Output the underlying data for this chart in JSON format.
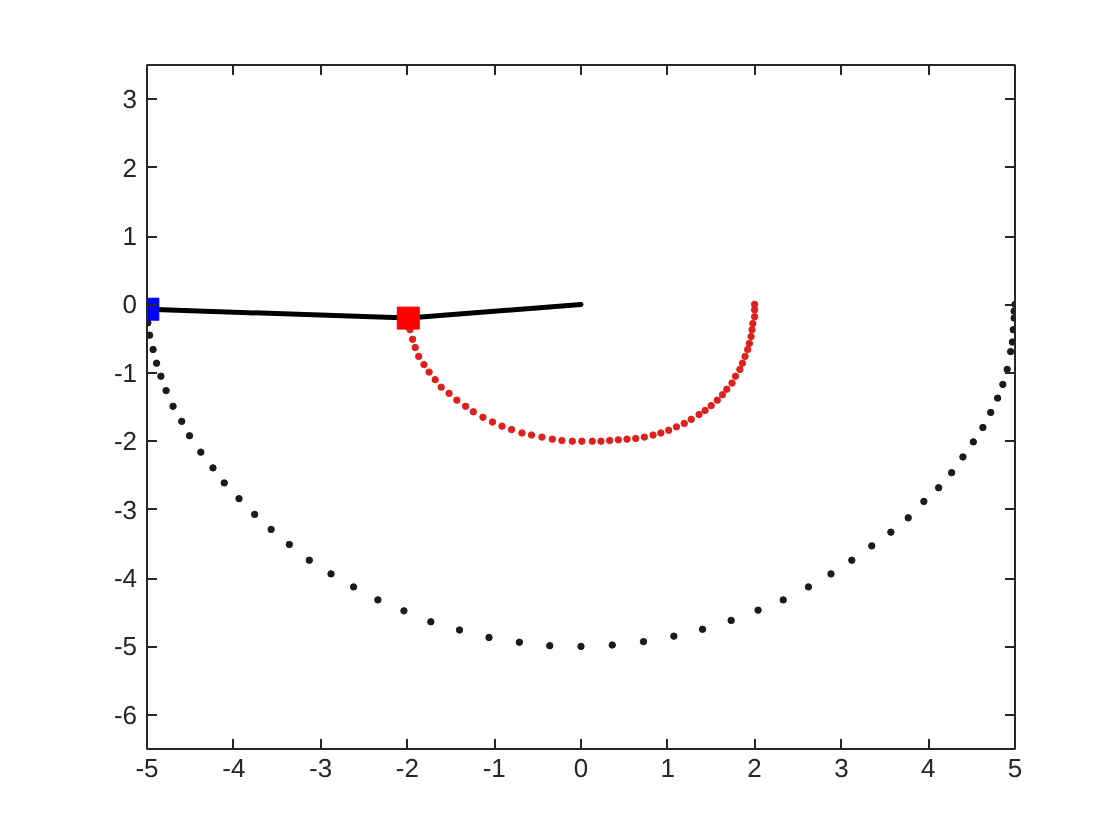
{
  "chart_data": {
    "type": "scatter",
    "xlim": [
      -5,
      5
    ],
    "ylim": [
      -6.5,
      3.5
    ],
    "xticks": [
      -5,
      -4,
      -3,
      -2,
      -1,
      0,
      1,
      2,
      3,
      4,
      5
    ],
    "yticks": [
      -6,
      -5,
      -4,
      -3,
      -2,
      -1,
      0,
      1,
      2,
      3
    ],
    "grid": false,
    "series": [
      {
        "marker": "circle",
        "color": "#1a1a1a",
        "x": [
          5.0,
          4.99,
          4.99,
          4.98,
          4.97,
          4.95,
          4.91,
          4.86,
          4.8,
          4.72,
          4.63,
          4.52,
          4.4,
          4.27,
          4.12,
          3.95,
          3.77,
          3.57,
          3.35,
          3.12,
          2.88,
          2.62,
          2.33,
          2.04,
          1.73,
          1.4,
          1.07,
          0.72,
          0.36,
          0.0,
          -0.36,
          -0.71,
          -1.06,
          -1.4,
          -1.73,
          -2.04,
          -2.34,
          -2.62,
          -2.88,
          -3.13,
          -3.36,
          -3.57,
          -3.76,
          -3.94,
          -4.11,
          -4.24,
          -4.38,
          -4.51,
          -4.6,
          -4.7,
          -4.78,
          -4.84,
          -4.89,
          -4.93,
          -4.97,
          -4.99
        ],
        "values": [
          0.0,
          -0.1,
          -0.2,
          -0.37,
          -0.55,
          -0.69,
          -0.95,
          -1.17,
          -1.37,
          -1.58,
          -1.8,
          -2.01,
          -2.23,
          -2.46,
          -2.68,
          -2.88,
          -3.12,
          -3.33,
          -3.53,
          -3.74,
          -3.94,
          -4.13,
          -4.32,
          -4.47,
          -4.62,
          -4.75,
          -4.85,
          -4.93,
          -4.98,
          -5.0,
          -4.99,
          -4.94,
          -4.87,
          -4.76,
          -4.64,
          -4.48,
          -4.32,
          -4.13,
          -3.94,
          -3.74,
          -3.51,
          -3.29,
          -3.07,
          -2.84,
          -2.61,
          -2.39,
          -2.16,
          -1.92,
          -1.71,
          -1.49,
          -1.26,
          -1.05,
          -0.86,
          -0.66,
          -0.45,
          -0.27
        ]
      },
      {
        "marker": "circle",
        "color": "#e0201c",
        "x": [
          2.0,
          2.0,
          2.0,
          1.98,
          1.97,
          1.96,
          1.94,
          1.92,
          1.89,
          1.86,
          1.83,
          1.78,
          1.74,
          1.68,
          1.63,
          1.57,
          1.5,
          1.43,
          1.36,
          1.27,
          1.19,
          1.1,
          1.01,
          0.92,
          0.83,
          0.73,
          0.63,
          0.53,
          0.43,
          0.33,
          0.23,
          0.13,
          0.01,
          -0.1,
          -0.22,
          -0.33,
          -0.45,
          -0.57,
          -0.68,
          -0.8,
          -0.91,
          -1.02,
          -1.13,
          -1.24,
          -1.33,
          -1.43,
          -1.52,
          -1.61,
          -1.68,
          -1.75,
          -1.81,
          -1.87,
          -1.91,
          -1.94,
          -1.97
        ],
        "values": [
          0.0,
          -0.08,
          -0.18,
          -0.28,
          -0.37,
          -0.47,
          -0.57,
          -0.66,
          -0.76,
          -0.86,
          -0.95,
          -1.05,
          -1.15,
          -1.24,
          -1.32,
          -1.4,
          -1.48,
          -1.55,
          -1.61,
          -1.68,
          -1.74,
          -1.79,
          -1.84,
          -1.88,
          -1.91,
          -1.94,
          -1.96,
          -1.97,
          -1.98,
          -1.99,
          -2.0,
          -2.0,
          -2.0,
          -2.0,
          -1.99,
          -1.97,
          -1.94,
          -1.91,
          -1.88,
          -1.83,
          -1.78,
          -1.72,
          -1.65,
          -1.57,
          -1.49,
          -1.4,
          -1.3,
          -1.21,
          -1.1,
          -0.99,
          -0.88,
          -0.76,
          -0.63,
          -0.51,
          -0.37
        ]
      },
      {
        "type": "line",
        "marker": "none",
        "line_style": "solid",
        "color": "#000000",
        "x": [
          0,
          -1.99,
          -4.99
        ],
        "values": [
          0,
          -0.2,
          -0.07
        ]
      },
      {
        "marker": "square",
        "color": "#ff0000",
        "x": [
          -1.99
        ],
        "values": [
          -0.2
        ]
      },
      {
        "marker": "square",
        "color": "#0000ff",
        "x": [
          -4.99
        ],
        "values": [
          -0.07
        ]
      }
    ]
  }
}
